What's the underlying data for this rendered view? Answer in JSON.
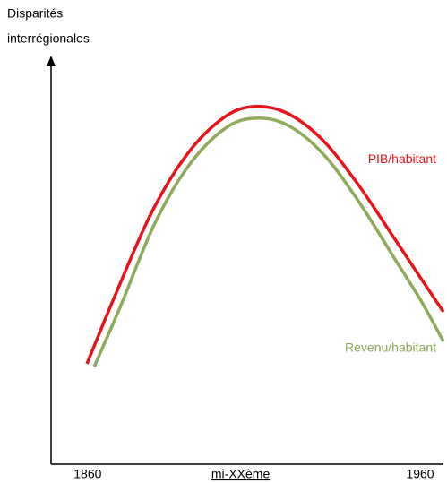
{
  "chart_data": {
    "type": "line",
    "ylabel": [
      "Disparités",
      "interrégionales"
    ],
    "xlim": [
      1849,
      1967
    ],
    "ylim": [
      0,
      100
    ],
    "xticks": [
      1860,
      {
        "value": 1906,
        "label": "mi-XXème"
      },
      1960
    ],
    "series": [
      {
        "name": "PIB/habitant",
        "color": "#e8141c",
        "x": [
          1859.8,
          1868.7,
          1879.4,
          1890.2,
          1901.0,
          1909.9,
          1919.9,
          1930.6,
          1941.4,
          1952.2,
          1960.3,
          1967
        ],
        "values": [
          24.8,
          42.5,
          62.4,
          76.8,
          85.6,
          88.3,
          86.7,
          80.1,
          69.0,
          55.8,
          45.8,
          37.6
        ]
      },
      {
        "name": "Revenu/habitant",
        "color": "#8faa5a",
        "x": [
          1862,
          1870,
          1880,
          1890.2,
          1901.0,
          1909.9,
          1919.9,
          1930.6,
          1941.4,
          1952.2,
          1960.3,
          1967
        ],
        "values": [
          24.1,
          39.2,
          59.1,
          73.5,
          82.7,
          85.4,
          83.8,
          76.8,
          65.0,
          50.9,
          40.3,
          30.3
        ]
      }
    ]
  }
}
